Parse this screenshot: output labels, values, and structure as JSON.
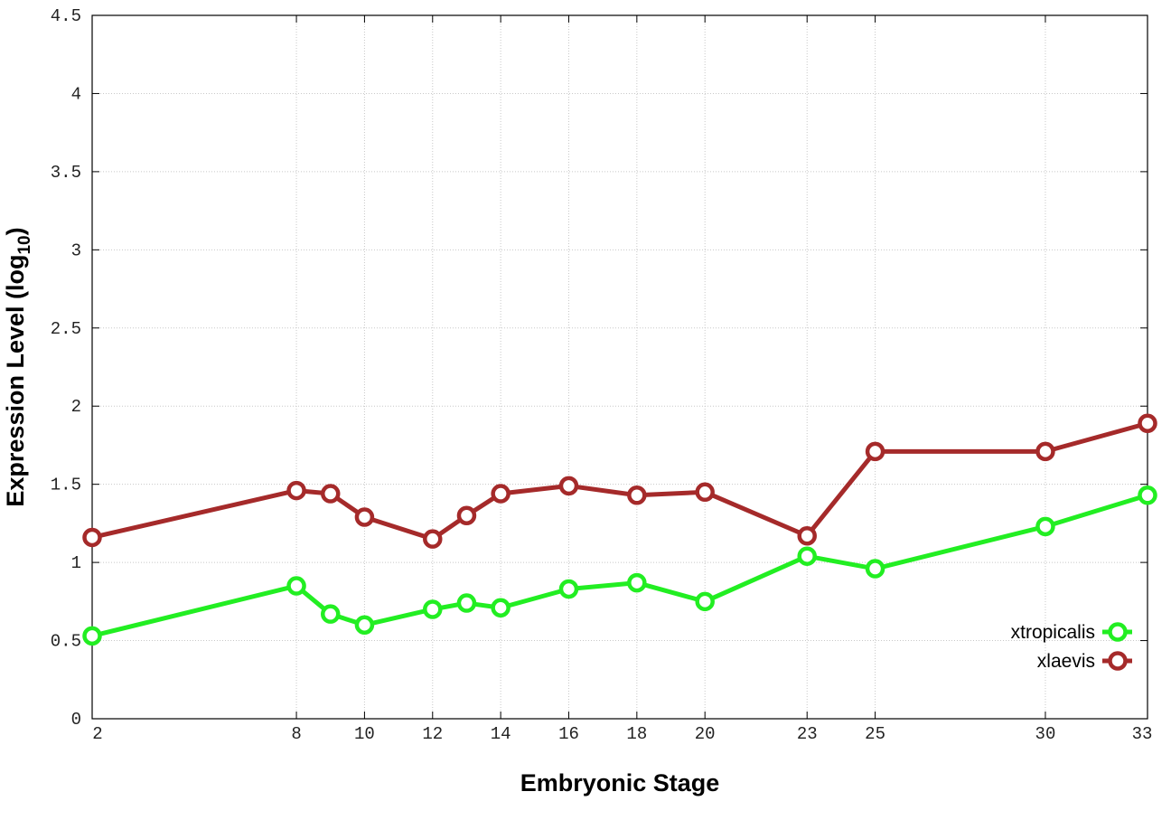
{
  "chart_data": {
    "type": "line",
    "title": "",
    "xlabel": "Embryonic Stage",
    "ylabel_main": "Expression Level (log",
    "ylabel_sub": "10",
    "ylabel_close": ")",
    "xlim": [
      2,
      33
    ],
    "ylim": [
      0,
      4.5
    ],
    "x_ticks": [
      2,
      8,
      10,
      12,
      14,
      16,
      18,
      20,
      23,
      25,
      30,
      33
    ],
    "y_ticks": [
      "0",
      "0.5",
      "1",
      "1.5",
      "2",
      "2.5",
      "3",
      "3.5",
      "4",
      "4.5"
    ],
    "grid": true,
    "legend_position": "bottom-right",
    "series": [
      {
        "name": "xtropicalis",
        "color": "#22ee22",
        "x": [
          2,
          8,
          9,
          10,
          12,
          13,
          14,
          16,
          18,
          20,
          23,
          25,
          30,
          33
        ],
        "y": [
          0.53,
          0.85,
          0.67,
          0.6,
          0.7,
          0.74,
          0.71,
          0.83,
          0.87,
          0.75,
          1.04,
          0.96,
          1.23,
          1.43
        ]
      },
      {
        "name": "xlaevis",
        "color": "#a52a2a",
        "x": [
          2,
          8,
          9,
          10,
          12,
          13,
          14,
          16,
          18,
          20,
          23,
          25,
          30,
          33
        ],
        "y": [
          1.16,
          1.46,
          1.44,
          1.29,
          1.15,
          1.3,
          1.44,
          1.49,
          1.43,
          1.45,
          1.17,
          1.71,
          1.71,
          1.89
        ]
      }
    ]
  }
}
